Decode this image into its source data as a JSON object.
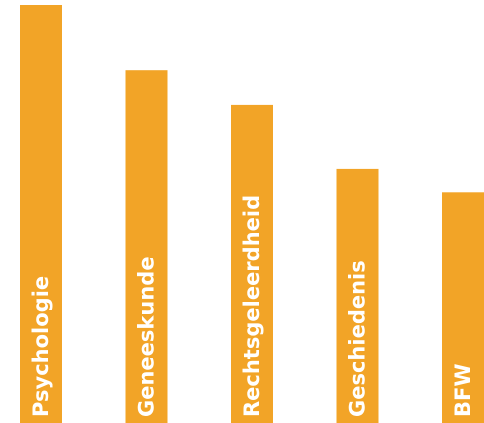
{
  "chart_data": {
    "type": "bar",
    "categories": [
      "Psychologie",
      "Geneeskunde",
      "Rechtsgeleerdheid",
      "Geschiedenis",
      "BFW"
    ],
    "values": [
      100,
      84.4,
      76.1,
      60.8,
      55.2
    ],
    "title": "",
    "xlabel": "",
    "ylabel": "",
    "ylim": [
      0,
      100
    ],
    "grid": false,
    "legend": "none",
    "bar_color": "#F2A427",
    "label_color": "#ffffff",
    "label_orientation": "vertical, inside bar"
  }
}
